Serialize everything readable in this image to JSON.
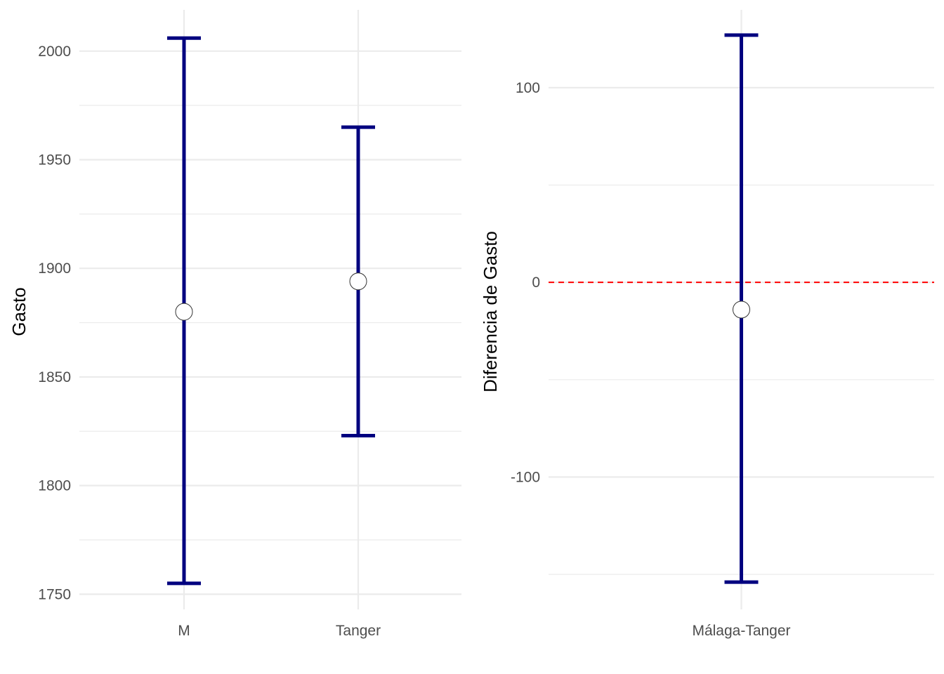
{
  "chart_data": [
    {
      "type": "errorbar",
      "title": "",
      "xlabel": "",
      "ylabel": "Gasto",
      "categories": [
        "M",
        "Tanger"
      ],
      "points": [
        {
          "category": "M",
          "estimate": 1880,
          "lower": 1755,
          "upper": 2006
        },
        {
          "category": "Tanger",
          "estimate": 1894,
          "lower": 1823,
          "upper": 1965
        }
      ],
      "yticks": [
        1750,
        1800,
        1850,
        1900,
        1950,
        2000
      ],
      "ytick_labels": [
        "1750",
        "1800",
        "1850",
        "1900",
        "1950",
        "2000"
      ],
      "ylim": [
        1743,
        2019
      ],
      "grid": true,
      "colors": {
        "bar": "#00007f",
        "point_fill": "#ffffff",
        "grid": "#ebebeb"
      }
    },
    {
      "type": "errorbar",
      "title": "",
      "xlabel": "",
      "ylabel": "Diferencia de Gasto",
      "categories": [
        "Málaga-Tanger"
      ],
      "points": [
        {
          "category": "Málaga-Tanger",
          "estimate": -14,
          "lower": -154,
          "upper": 127
        }
      ],
      "yticks": [
        -100,
        0,
        100
      ],
      "ytick_labels": [
        "-100",
        "0",
        "100"
      ],
      "ylim": [
        -168,
        140
      ],
      "reference_line": {
        "y": 0,
        "color": "#ff0000",
        "style": "dashed"
      },
      "grid": true,
      "colors": {
        "bar": "#00007f",
        "point_fill": "#ffffff",
        "grid": "#ebebeb"
      }
    }
  ]
}
